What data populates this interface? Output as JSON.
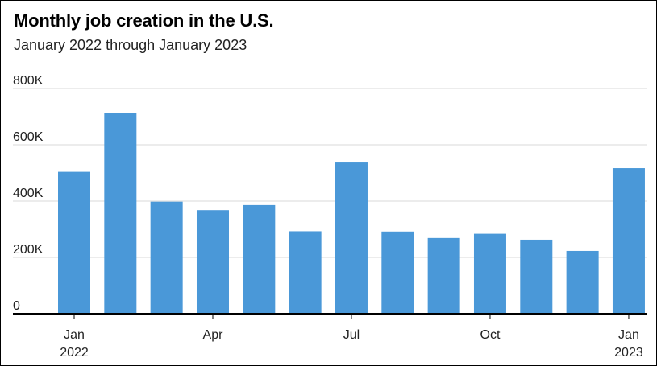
{
  "chart_data": {
    "type": "bar",
    "title": "Monthly job creation in the U.S.",
    "subtitle": "January 2022 through January 2023",
    "categories": [
      "Jan 2022",
      "Feb 2022",
      "Mar 2022",
      "Apr 2022",
      "May 2022",
      "Jun 2022",
      "Jul 2022",
      "Aug 2022",
      "Sep 2022",
      "Oct 2022",
      "Nov 2022",
      "Dec 2022",
      "Jan 2023"
    ],
    "values": [
      504000,
      714000,
      398000,
      368000,
      386000,
      293000,
      537000,
      292000,
      269000,
      284000,
      263000,
      223000,
      517000
    ],
    "ylim": [
      0,
      800000
    ],
    "yticks": [
      {
        "value": 0,
        "label": "0"
      },
      {
        "value": 200000,
        "label": "200K"
      },
      {
        "value": 400000,
        "label": "400K"
      },
      {
        "value": 600000,
        "label": "600K"
      },
      {
        "value": 800000,
        "label": "800K"
      }
    ],
    "xticks": [
      {
        "index": 0,
        "line1": "Jan",
        "line2": "2022"
      },
      {
        "index": 3,
        "line1": "Apr",
        "line2": ""
      },
      {
        "index": 6,
        "line1": "Jul",
        "line2": ""
      },
      {
        "index": 9,
        "line1": "Oct",
        "line2": ""
      },
      {
        "index": 12,
        "line1": "Jan",
        "line2": "2023"
      }
    ],
    "grid": true,
    "colors": {
      "bar": "#4a98d8",
      "grid": "#d9d9d9",
      "axis": "#000000"
    }
  }
}
